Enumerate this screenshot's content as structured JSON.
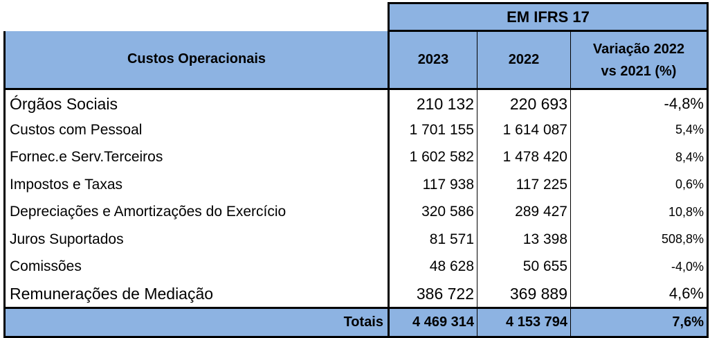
{
  "header": {
    "group_label": "EM IFRS 17",
    "col_label": "Custos Operacionais",
    "col_2023": "2023",
    "col_2022": "2022",
    "col_variation_line1": "Variação 2022",
    "col_variation_line2": "vs 2021 (%)"
  },
  "rows": [
    {
      "label": "Órgãos Sociais",
      "v2023": "210 132",
      "v2022": "220 693",
      "variation": "-4,8%"
    },
    {
      "label": "Custos com Pessoal",
      "v2023": "1 701 155",
      "v2022": "1 614 087",
      "variation": "5,4%"
    },
    {
      "label": "Fornec.e Serv.Terceiros",
      "v2023": "1 602 582",
      "v2022": "1 478 420",
      "variation": "8,4%"
    },
    {
      "label": "Impostos e Taxas",
      "v2023": "117 938",
      "v2022": "117 225",
      "variation": "0,6%"
    },
    {
      "label": "Depreciações e Amortizações do Exercício",
      "v2023": "320 586",
      "v2022": "289 427",
      "variation": "10,8%"
    },
    {
      "label": "Juros Suportados",
      "v2023": "81 571",
      "v2022": "13 398",
      "variation": "508,8%"
    },
    {
      "label": "Comissões",
      "v2023": "48 628",
      "v2022": "50 655",
      "variation": "-4,0%"
    },
    {
      "label": "Remunerações de Mediação",
      "v2023": "386 722",
      "v2022": "369 889",
      "variation": "4,6%"
    }
  ],
  "totals": {
    "label": "Totais",
    "v2023": "4 469 314",
    "v2022": "4 153 794",
    "variation": "7,6%"
  },
  "colors": {
    "header_fill": "#8db3e2",
    "border": "#000000"
  }
}
